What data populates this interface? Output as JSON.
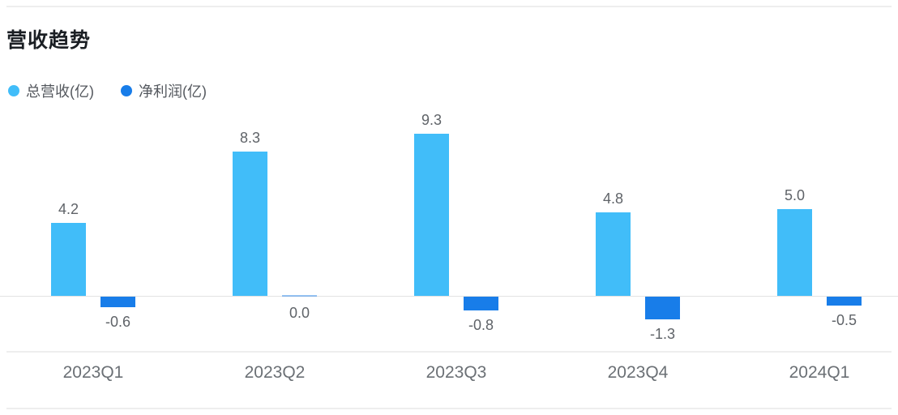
{
  "page": {
    "title": "营收趋势"
  },
  "colors": {
    "total_revenue": "#41bdf9",
    "net_profit": "#187de9",
    "divider": "#eeeeee",
    "axis_line": "#e2e2e2",
    "title_text": "#1b1f24",
    "label_text": "#5f6368",
    "axis_text": "#6b7075"
  },
  "chart_data": {
    "type": "bar",
    "title": "营收趋势",
    "categories": [
      "2023Q1",
      "2023Q2",
      "2023Q3",
      "2023Q4",
      "2024Q1"
    ],
    "series": [
      {
        "name": "总营收(亿)",
        "color": "#41bdf9",
        "values": [
          4.2,
          8.3,
          9.3,
          4.8,
          5.0
        ]
      },
      {
        "name": "净利润(亿)",
        "color": "#187de9",
        "values": [
          -0.6,
          0.0,
          -0.8,
          -1.3,
          -0.5
        ]
      }
    ],
    "value_labels": true,
    "value_label_format": "one-decimal",
    "xlabel": "",
    "ylabel": "",
    "ylim": [
      -1.5,
      9.5
    ],
    "grid": false,
    "legend_position": "top-left"
  }
}
